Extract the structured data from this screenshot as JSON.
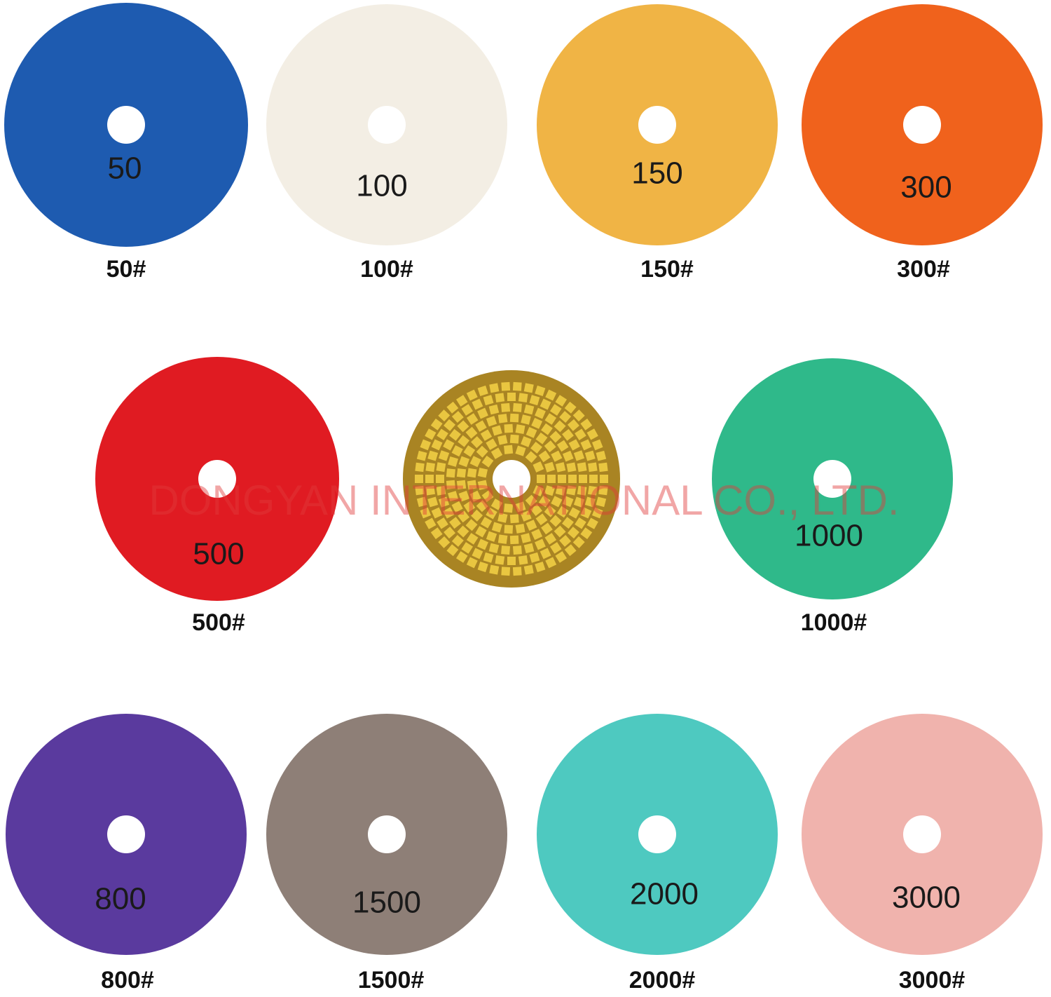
{
  "pads": [
    {
      "number": "50",
      "caption": "50#"
    },
    {
      "number": "100",
      "caption": "100#"
    },
    {
      "number": "150",
      "caption": "150#"
    },
    {
      "number": "300",
      "caption": "300#"
    },
    {
      "number": "500",
      "caption": "500#"
    },
    {
      "number": "1000",
      "caption": "1000#"
    },
    {
      "number": "800",
      "caption": "800#"
    },
    {
      "number": "1500",
      "caption": "1500#"
    },
    {
      "number": "2000",
      "caption": "2000#"
    },
    {
      "number": "3000",
      "caption": "3000#"
    }
  ],
  "watermark": "DONGYAN INTERNATIONAL CO., LTD."
}
